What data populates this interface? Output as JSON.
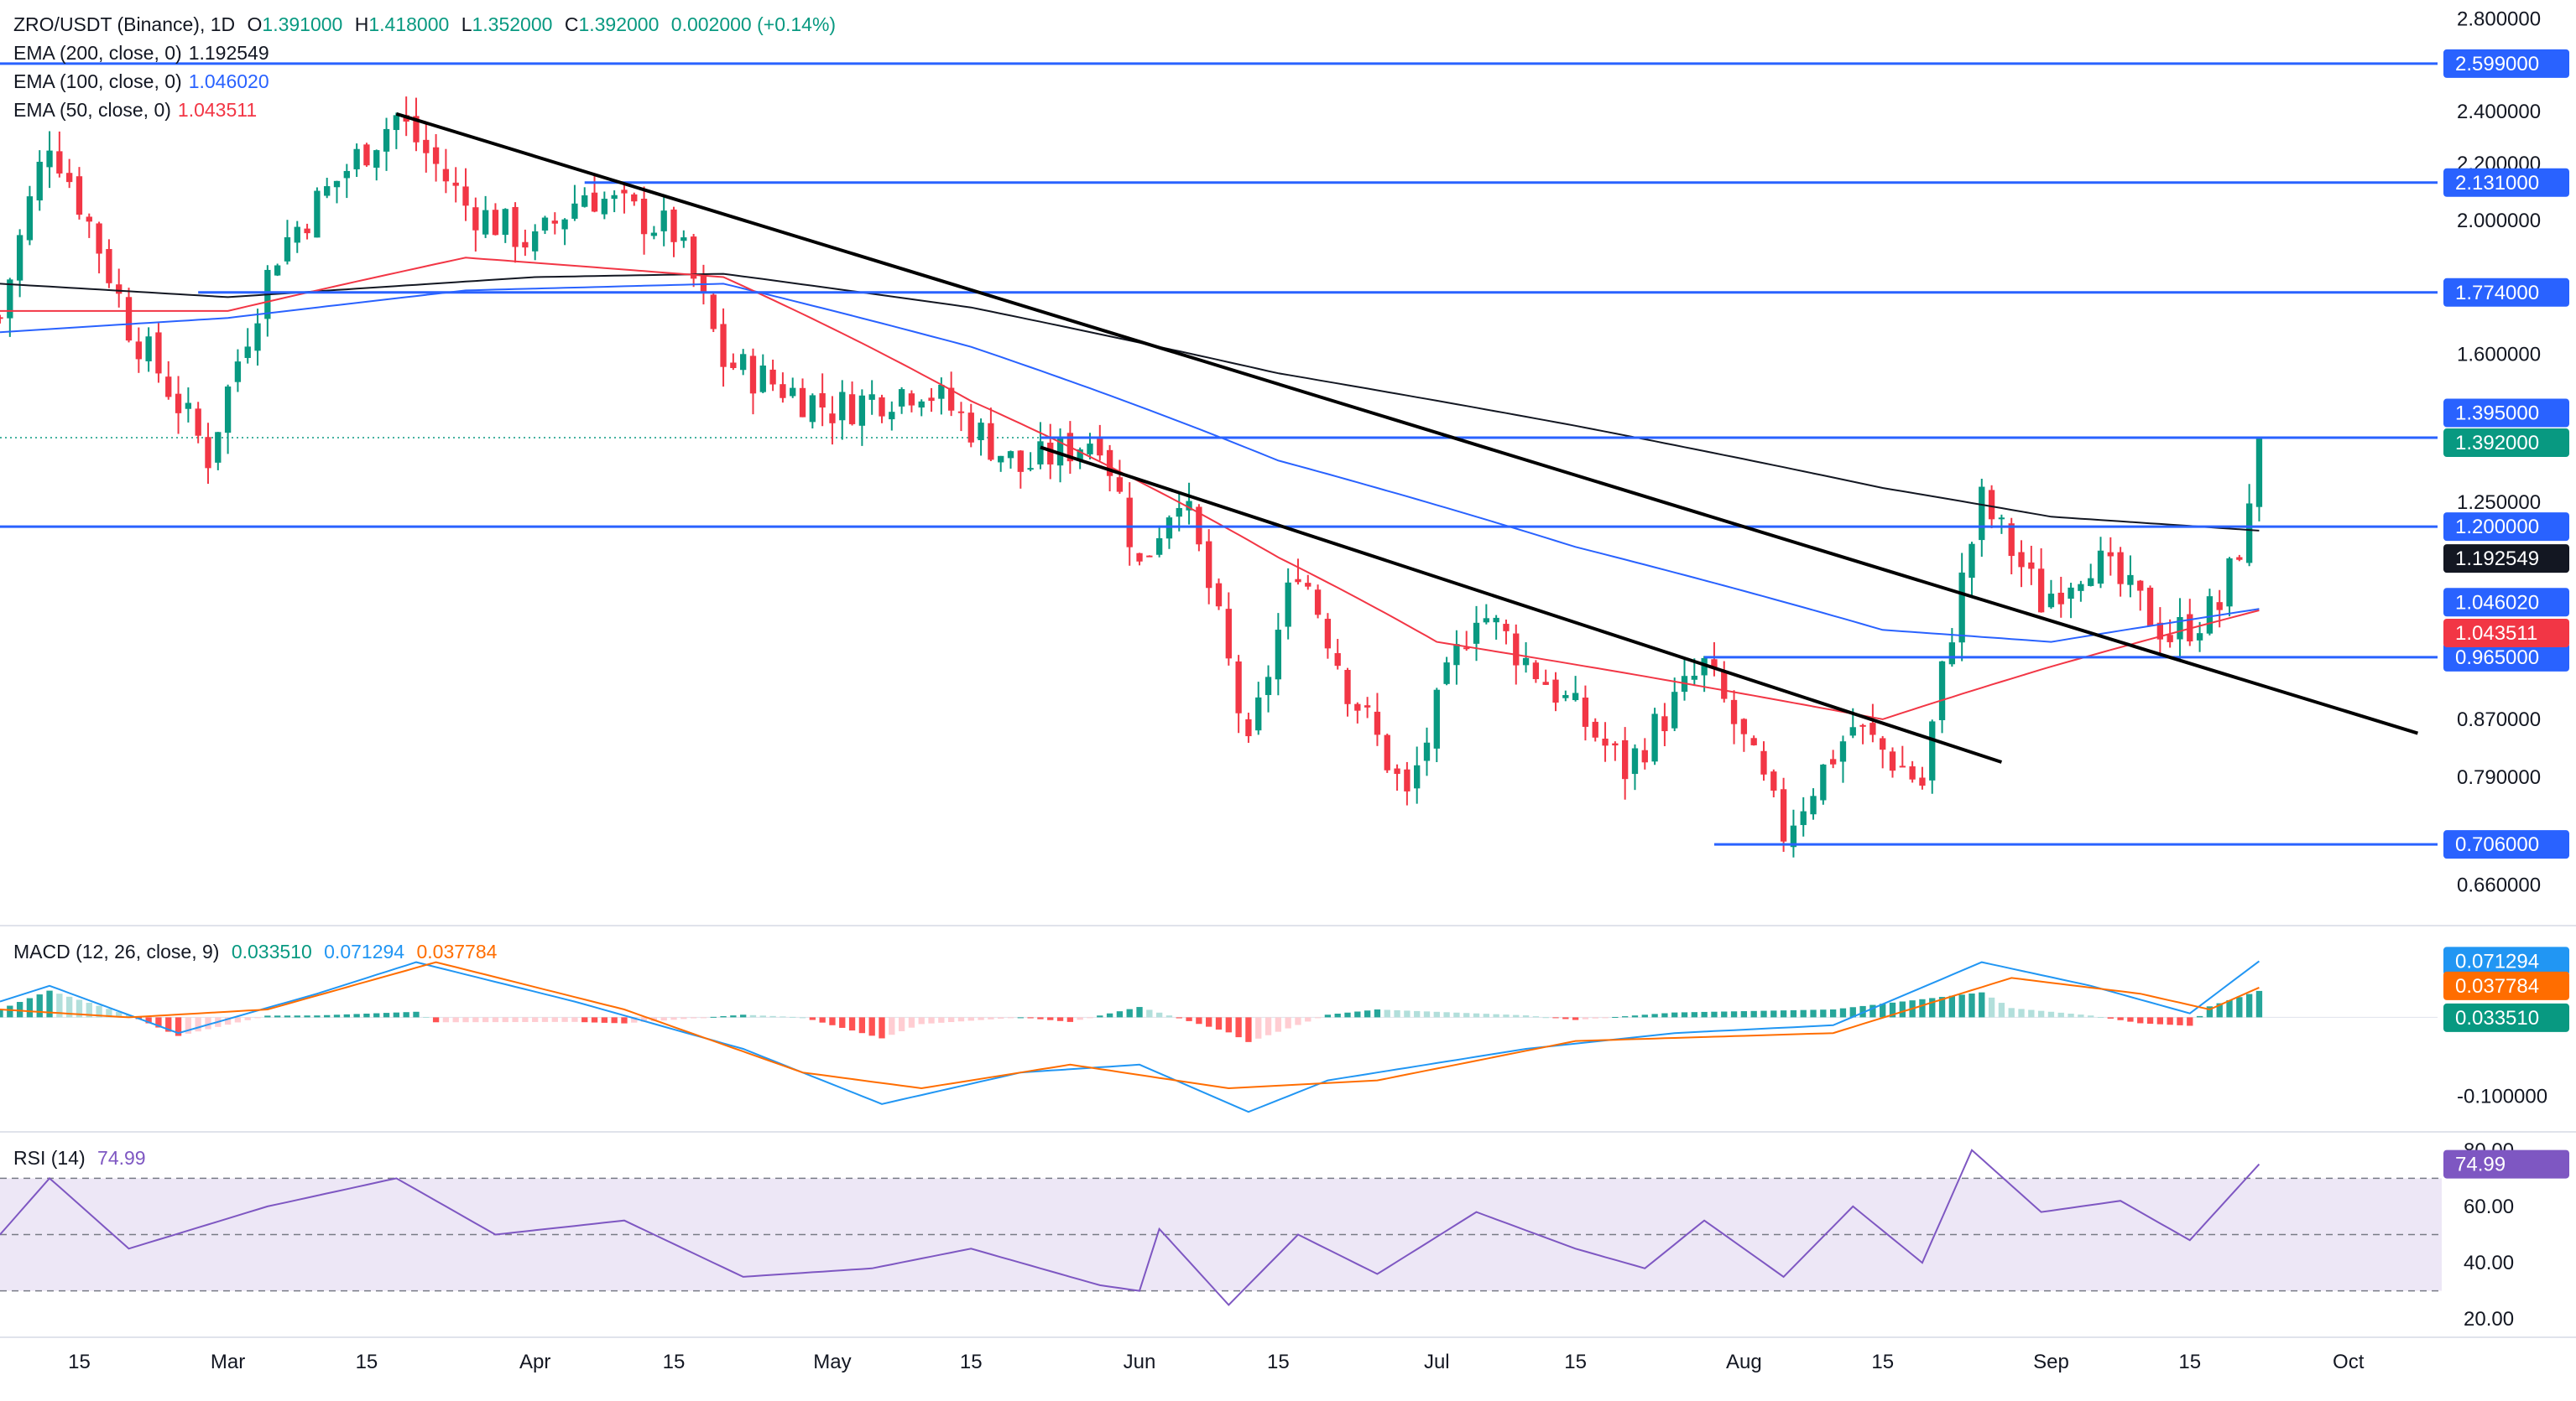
{
  "header": {
    "symbol": "ZRO/USDT (Binance), 1D",
    "o_label": "O",
    "o": "1.391000",
    "h_label": "H",
    "h": "1.418000",
    "l_label": "L",
    "l": "1.352000",
    "c_label": "C",
    "c": "1.392000",
    "change": "0.002000 (+0.14%)"
  },
  "ema_legend": [
    {
      "label": "EMA (200, close, 0)",
      "value": "1.192549",
      "color": "#131722"
    },
    {
      "label": "EMA (100, close, 0)",
      "value": "1.046020",
      "color": "#2962ff"
    },
    {
      "label": "EMA (50, close, 0)",
      "value": "1.043511",
      "color": "#f23645"
    }
  ],
  "macd_legend": {
    "label": "MACD (12, 26, close, 9)",
    "hist": "0.033510",
    "macd": "0.071294",
    "signal": "0.037784"
  },
  "rsi_legend": {
    "label": "RSI (14)",
    "value": "74.99"
  },
  "colors": {
    "up": "#089981",
    "down": "#f23645",
    "level": "#2962ff",
    "ema200": "#131722",
    "ema100": "#2962ff",
    "ema50": "#f23645",
    "macd": "#2196f3",
    "signal": "#ff6d00",
    "rsi": "#7e57c2",
    "rsi_band": "#ede7f6"
  },
  "chart_data": {
    "type": "candlestick",
    "price_axis_ticks": [
      "2.800000",
      "2.400000",
      "2.200000",
      "2.000000",
      "1.600000",
      "1.250000",
      "0.870000",
      "0.790000",
      "0.660000"
    ],
    "macd_axis_ticks": [
      "0.000000",
      "-0.100000"
    ],
    "rsi_axis_ticks": [
      "80.00",
      "60.00",
      "40.00",
      "20.00"
    ],
    "x_ticks": [
      {
        "label": "15",
        "date": "2024-02-15"
      },
      {
        "label": "Mar",
        "date": "2024-03-01"
      },
      {
        "label": "15",
        "date": "2024-03-15"
      },
      {
        "label": "Apr",
        "date": "2024-04-01"
      },
      {
        "label": "15",
        "date": "2024-04-15"
      },
      {
        "label": "May",
        "date": "2024-05-01"
      },
      {
        "label": "15",
        "date": "2024-05-15"
      },
      {
        "label": "Jun",
        "date": "2024-06-01"
      },
      {
        "label": "15",
        "date": "2024-06-15"
      },
      {
        "label": "Jul",
        "date": "2024-07-01"
      },
      {
        "label": "15",
        "date": "2024-07-15"
      },
      {
        "label": "Aug",
        "date": "2024-08-01"
      },
      {
        "label": "15",
        "date": "2024-08-15"
      },
      {
        "label": "Sep",
        "date": "2024-09-01"
      },
      {
        "label": "15",
        "date": "2024-09-15"
      },
      {
        "label": "Oct",
        "date": "2024-10-01"
      }
    ],
    "x_range": [
      "2024-02-07",
      "2024-10-10"
    ],
    "price_range": [
      0.62,
      2.85
    ],
    "macd_range": [
      -0.14,
      0.11
    ],
    "rsi_range": [
      15,
      85
    ],
    "horizontal_levels": [
      {
        "label": "2.599000",
        "value": 2.599,
        "start": "2024-02-07"
      },
      {
        "label": "2.131000",
        "value": 2.131,
        "start": "2024-04-06"
      },
      {
        "label": "1.774000",
        "value": 1.774,
        "start": "2024-02-27"
      },
      {
        "label": "1.392000",
        "value": 1.392,
        "start": "2024-05-22"
      },
      {
        "label": "1.200000",
        "value": 1.2,
        "start": "2024-02-07"
      },
      {
        "label": "0.965000",
        "value": 0.965,
        "start": "2024-07-28"
      },
      {
        "label": "0.706000",
        "value": 0.706,
        "start": "2024-07-29"
      }
    ],
    "extra_price_tags": [
      {
        "label": "1.395000",
        "value": 1.395,
        "color": "#2962ff"
      },
      {
        "label": "1.192549",
        "value": 1.192549,
        "color": "#131722"
      },
      {
        "label": "1.046020",
        "value": 1.04602,
        "color": "#2962ff"
      },
      {
        "label": "1.043511",
        "value": 1.043511,
        "color": "#f23645"
      }
    ],
    "trendlines": [
      {
        "start": [
          "2024-03-18",
          2.39
        ],
        "end": [
          "2024-10-08",
          0.85
        ]
      },
      {
        "start": [
          "2024-05-22",
          1.37
        ],
        "end": [
          "2024-08-27",
          0.81
        ]
      }
    ],
    "ema200": [
      [
        "2024-02-07",
        1.8
      ],
      [
        "2024-03-01",
        1.76
      ],
      [
        "2024-04-01",
        1.82
      ],
      [
        "2024-04-20",
        1.83
      ],
      [
        "2024-05-15",
        1.73
      ],
      [
        "2024-06-15",
        1.55
      ],
      [
        "2024-07-15",
        1.42
      ],
      [
        "2024-08-15",
        1.28
      ],
      [
        "2024-09-01",
        1.22
      ],
      [
        "2024-09-22",
        1.192
      ]
    ],
    "ema100": [
      [
        "2024-02-07",
        1.66
      ],
      [
        "2024-03-01",
        1.7
      ],
      [
        "2024-03-25",
        1.78
      ],
      [
        "2024-04-20",
        1.8
      ],
      [
        "2024-05-15",
        1.62
      ],
      [
        "2024-06-15",
        1.34
      ],
      [
        "2024-07-15",
        1.16
      ],
      [
        "2024-08-15",
        1.01
      ],
      [
        "2024-09-01",
        0.99
      ],
      [
        "2024-09-22",
        1.046
      ]
    ],
    "ema50": [
      [
        "2024-02-07",
        1.72
      ],
      [
        "2024-03-01",
        1.72
      ],
      [
        "2024-03-25",
        1.88
      ],
      [
        "2024-04-20",
        1.82
      ],
      [
        "2024-05-15",
        1.48
      ],
      [
        "2024-06-15",
        1.14
      ],
      [
        "2024-07-01",
        0.99
      ],
      [
        "2024-07-20",
        0.94
      ],
      [
        "2024-08-15",
        0.87
      ],
      [
        "2024-09-01",
        0.95
      ],
      [
        "2024-09-22",
        1.0435
      ]
    ],
    "candles_anchor": [
      [
        "2024-02-07",
        1.7
      ],
      [
        "2024-02-12",
        2.3
      ],
      [
        "2024-02-20",
        1.68
      ],
      [
        "2024-02-28",
        1.35
      ],
      [
        "2024-03-06",
        1.9
      ],
      [
        "2024-03-18",
        2.38
      ],
      [
        "2024-03-25",
        2.05
      ],
      [
        "2024-04-01",
        1.92
      ],
      [
        "2024-04-06",
        2.1
      ],
      [
        "2024-04-15",
        1.96
      ],
      [
        "2024-04-20",
        1.58
      ],
      [
        "2024-05-01",
        1.46
      ],
      [
        "2024-05-10",
        1.52
      ],
      [
        "2024-05-20",
        1.32
      ],
      [
        "2024-05-28",
        1.4
      ],
      [
        "2024-06-01",
        1.12
      ],
      [
        "2024-06-05",
        1.28
      ],
      [
        "2024-06-12",
        0.82
      ],
      [
        "2024-06-17",
        1.13
      ],
      [
        "2024-06-22",
        0.92
      ],
      [
        "2024-06-28",
        0.76
      ],
      [
        "2024-07-05",
        1.05
      ],
      [
        "2024-07-10",
        0.96
      ],
      [
        "2024-07-20",
        0.8
      ],
      [
        "2024-07-28",
        0.95
      ],
      [
        "2024-08-05",
        0.72
      ],
      [
        "2024-08-12",
        0.86
      ],
      [
        "2024-08-19",
        0.78
      ],
      [
        "2024-08-25",
        1.25
      ],
      [
        "2024-08-31",
        1.06
      ],
      [
        "2024-09-05",
        1.14
      ],
      [
        "2024-09-13",
        1.0
      ],
      [
        "2024-09-18",
        1.05
      ],
      [
        "2024-09-21",
        1.22
      ],
      [
        "2024-09-22",
        1.392
      ]
    ],
    "macd_line": [
      [
        "2024-02-07",
        0.02
      ],
      [
        "2024-02-12",
        0.04
      ],
      [
        "2024-02-25",
        -0.02
      ],
      [
        "2024-03-10",
        0.03
      ],
      [
        "2024-03-20",
        0.07
      ],
      [
        "2024-04-05",
        0.02
      ],
      [
        "2024-04-22",
        -0.04
      ],
      [
        "2024-05-06",
        -0.11
      ],
      [
        "2024-05-20",
        -0.07
      ],
      [
        "2024-06-01",
        -0.06
      ],
      [
        "2024-06-12",
        -0.12
      ],
      [
        "2024-06-20",
        -0.08
      ],
      [
        "2024-07-10",
        -0.04
      ],
      [
        "2024-07-25",
        -0.02
      ],
      [
        "2024-08-10",
        -0.01
      ],
      [
        "2024-08-25",
        0.07
      ],
      [
        "2024-09-05",
        0.04
      ],
      [
        "2024-09-15",
        0.005
      ],
      [
        "2024-09-22",
        0.0713
      ]
    ],
    "signal_line": [
      [
        "2024-02-07",
        0.01
      ],
      [
        "2024-02-20",
        0.0
      ],
      [
        "2024-03-05",
        0.01
      ],
      [
        "2024-03-22",
        0.07
      ],
      [
        "2024-04-10",
        0.01
      ],
      [
        "2024-04-28",
        -0.07
      ],
      [
        "2024-05-10",
        -0.09
      ],
      [
        "2024-05-25",
        -0.06
      ],
      [
        "2024-06-10",
        -0.09
      ],
      [
        "2024-06-25",
        -0.08
      ],
      [
        "2024-07-15",
        -0.03
      ],
      [
        "2024-08-10",
        -0.02
      ],
      [
        "2024-08-28",
        0.05
      ],
      [
        "2024-09-10",
        0.03
      ],
      [
        "2024-09-17",
        0.01
      ],
      [
        "2024-09-22",
        0.0378
      ]
    ],
    "rsi": [
      [
        "2024-02-07",
        50
      ],
      [
        "2024-02-12",
        70
      ],
      [
        "2024-02-20",
        45
      ],
      [
        "2024-03-05",
        60
      ],
      [
        "2024-03-18",
        70
      ],
      [
        "2024-03-28",
        50
      ],
      [
        "2024-04-10",
        55
      ],
      [
        "2024-04-22",
        35
      ],
      [
        "2024-05-05",
        38
      ],
      [
        "2024-05-15",
        45
      ],
      [
        "2024-05-28",
        32
      ],
      [
        "2024-06-01",
        30
      ],
      [
        "2024-06-03",
        52
      ],
      [
        "2024-06-10",
        25
      ],
      [
        "2024-06-17",
        50
      ],
      [
        "2024-06-25",
        36
      ],
      [
        "2024-07-05",
        58
      ],
      [
        "2024-07-15",
        45
      ],
      [
        "2024-07-22",
        38
      ],
      [
        "2024-07-28",
        55
      ],
      [
        "2024-08-05",
        35
      ],
      [
        "2024-08-12",
        60
      ],
      [
        "2024-08-19",
        40
      ],
      [
        "2024-08-24",
        80
      ],
      [
        "2024-08-31",
        58
      ],
      [
        "2024-09-08",
        62
      ],
      [
        "2024-09-15",
        48
      ],
      [
        "2024-09-22",
        74.99
      ]
    ]
  }
}
